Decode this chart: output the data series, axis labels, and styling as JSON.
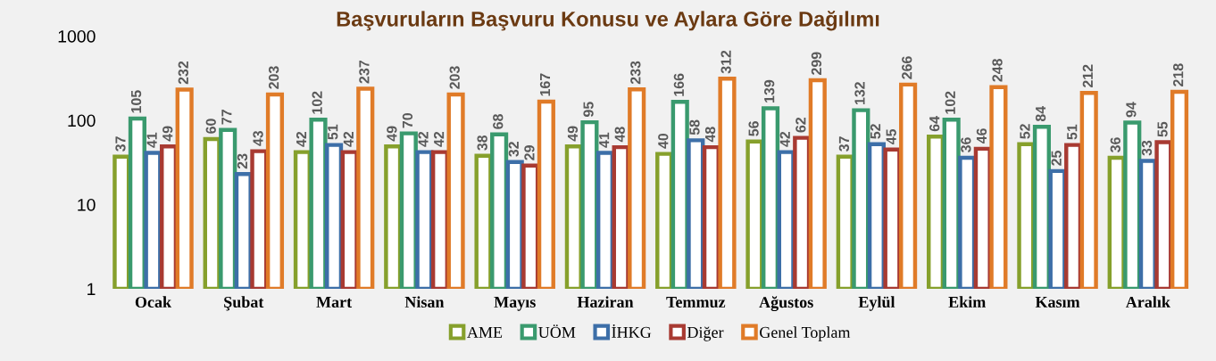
{
  "chart_data": {
    "type": "bar",
    "title": "Başvuruların Başvuru Konusu ve Aylara Göre Dağılımı",
    "categories": [
      "Ocak",
      "Şubat",
      "Mart",
      "Nisan",
      "Mayıs",
      "Haziran",
      "Temmuz",
      "Ağustos",
      "Eylül",
      "Ekim",
      "Kasım",
      "Aralık"
    ],
    "series": [
      {
        "name": "AME",
        "color": "#86a02c",
        "values": [
          37,
          60,
          42,
          49,
          38,
          49,
          40,
          56,
          37,
          64,
          52,
          36
        ]
      },
      {
        "name": "UÖM",
        "color": "#3a9a6e",
        "values": [
          105,
          77,
          102,
          70,
          68,
          95,
          166,
          139,
          132,
          102,
          84,
          94
        ]
      },
      {
        "name": "İHKG",
        "color": "#3d6fa8",
        "values": [
          41,
          23,
          51,
          42,
          32,
          41,
          58,
          42,
          52,
          36,
          25,
          33
        ]
      },
      {
        "name": "Diğer",
        "color": "#a83a32",
        "values": [
          49,
          43,
          42,
          42,
          29,
          48,
          48,
          62,
          45,
          46,
          51,
          55
        ]
      },
      {
        "name": "Genel Toplam",
        "color": "#e07b28",
        "values": [
          232,
          203,
          237,
          203,
          167,
          233,
          312,
          299,
          266,
          248,
          212,
          218
        ]
      }
    ],
    "log": "y",
    "ylim": [
      1,
      1000
    ],
    "yticks": [
      1,
      10,
      100,
      1000
    ],
    "grid": false,
    "legend": "bottom",
    "data_labels": true
  }
}
